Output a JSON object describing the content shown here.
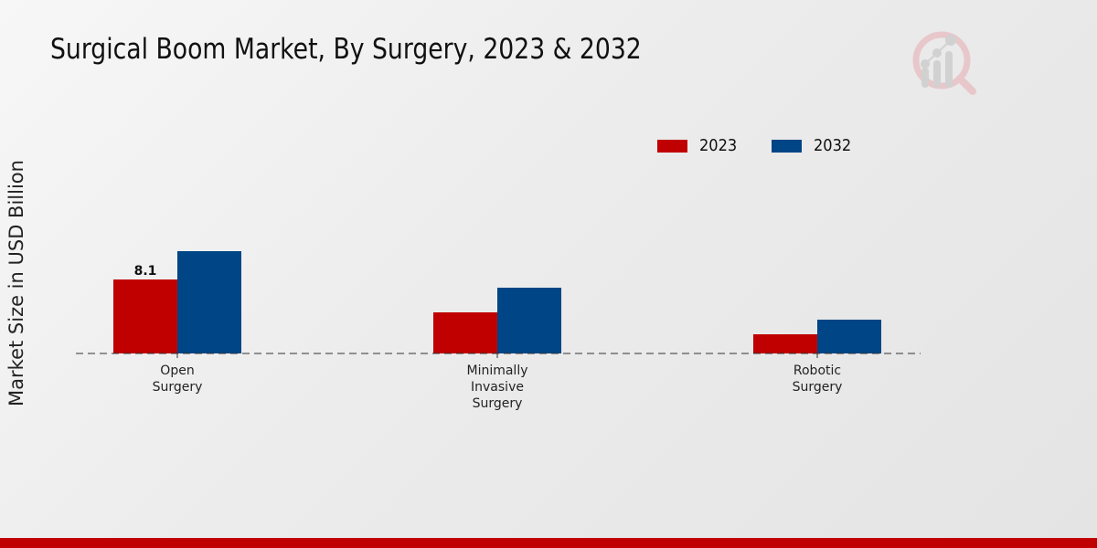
{
  "chart_data": {
    "type": "bar",
    "title": "Surgical Boom Market, By Surgery, 2023 & 2032",
    "xlabel": "",
    "ylabel": "Market Size in USD Billion",
    "categories": [
      [
        "Open",
        "Surgery"
      ],
      [
        "Minimally",
        "Invasive",
        "Surgery"
      ],
      [
        "Robotic",
        "Surgery"
      ]
    ],
    "series": [
      {
        "name": "2023",
        "color": "#c00000",
        "values": [
          8.1,
          4.5,
          2.1
        ],
        "labels": [
          "8.1",
          "",
          ""
        ]
      },
      {
        "name": "2032",
        "color": "#004586",
        "values": [
          11.2,
          7.2,
          3.7
        ]
      }
    ],
    "ylim": [
      0,
      15
    ],
    "grid": false,
    "legend_position": "top-right"
  },
  "colors": {
    "accent": "#c00000",
    "series_2023": "#c00000",
    "series_2032": "#004586"
  },
  "logo": {
    "icon": "analytics-magnifier-logo-icon"
  }
}
